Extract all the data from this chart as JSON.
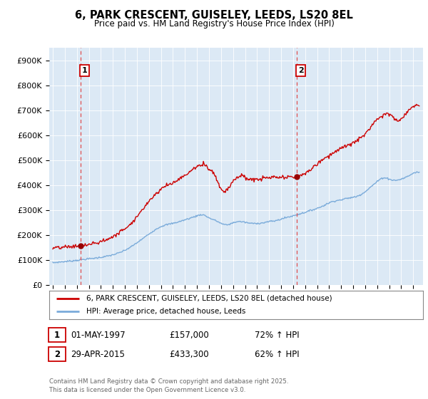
{
  "title": "6, PARK CRESCENT, GUISELEY, LEEDS, LS20 8EL",
  "subtitle": "Price paid vs. HM Land Registry's House Price Index (HPI)",
  "ylabel_ticks": [
    "£0",
    "£100K",
    "£200K",
    "£300K",
    "£400K",
    "£500K",
    "£600K",
    "£700K",
    "£800K",
    "£900K"
  ],
  "ytick_values": [
    0,
    100000,
    200000,
    300000,
    400000,
    500000,
    600000,
    700000,
    800000,
    900000
  ],
  "ylim": [
    0,
    950000
  ],
  "xlim_start": 1994.7,
  "xlim_end": 2025.8,
  "background_color": "#dce9f5",
  "legend_label_red": "6, PARK CRESCENT, GUISELEY, LEEDS, LS20 8EL (detached house)",
  "legend_label_blue": "HPI: Average price, detached house, Leeds",
  "sale1_date": "01-MAY-1997",
  "sale1_price": "£157,000",
  "sale1_hpi": "72% ↑ HPI",
  "sale1_year": 1997.33,
  "sale1_value": 157000,
  "sale2_date": "29-APR-2015",
  "sale2_price": "£433,300",
  "sale2_hpi": "62% ↑ HPI",
  "sale2_year": 2015.33,
  "sale2_value": 433300,
  "footer": "Contains HM Land Registry data © Crown copyright and database right 2025.\nThis data is licensed under the Open Government Licence v3.0.",
  "red_line_color": "#cc0000",
  "blue_line_color": "#7aabda",
  "vline_color": "#e05050",
  "marker_color": "#990000"
}
